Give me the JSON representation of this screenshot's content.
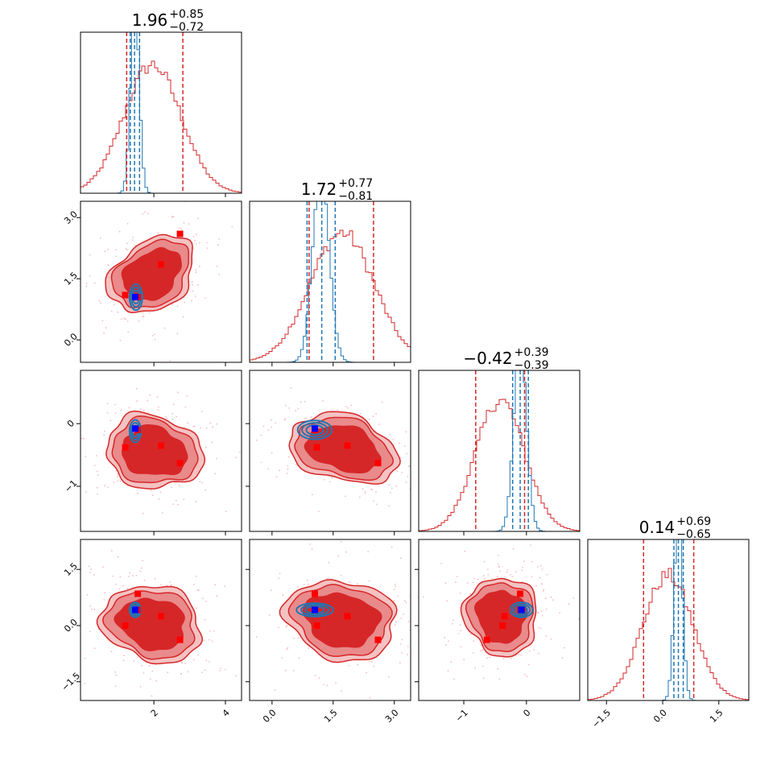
{
  "colors": {
    "sample": "#d62728",
    "sample_fill_outer": "#f4c2c2",
    "sample_fill_mid": "#e98a8b",
    "sample_fill_inner": "#d62728",
    "truth": "#1f77b4",
    "marker_red": "#ff0000",
    "marker_blue": "#0000ff"
  },
  "chart_data": {
    "type": "corner",
    "n_params": 4,
    "grid": false,
    "legend": "none",
    "titles": [
      {
        "median": "1.96",
        "plus": "+0.85",
        "minus": "−0.72"
      },
      {
        "median": "1.72",
        "plus": "+0.77",
        "minus": "−0.81"
      },
      {
        "median": "−0.42",
        "plus": "+0.39",
        "minus": "−0.39"
      },
      {
        "median": "0.14",
        "plus": "+0.69",
        "minus": "−0.65"
      }
    ],
    "ranges": [
      [
        -0.05,
        4.45
      ],
      [
        -0.55,
        3.4
      ],
      [
        -1.72,
        0.85
      ],
      [
        -2.0,
        2.3
      ]
    ],
    "ticks": [
      {
        "values": [
          2,
          4
        ],
        "labels": [
          "2",
          "4"
        ]
      },
      {
        "values": [
          0.0,
          1.5,
          3.0
        ],
        "labels": [
          "0.0",
          "1.5",
          "3.0"
        ]
      },
      {
        "values": [
          -1,
          0
        ],
        "labels": [
          "−1",
          "0"
        ]
      },
      {
        "values": [
          -1.5,
          0.0,
          1.5
        ],
        "labels": [
          "−1.5",
          "0.0",
          "1.5"
        ]
      }
    ],
    "diagonal": [
      {
        "red_quantiles": [
          1.24,
          2.81
        ],
        "blue_quantiles": [
          1.34,
          1.46,
          1.6
        ],
        "red_hist": {
          "mean": 1.96,
          "sd": 0.8
        },
        "blue_hist": {
          "mean": 1.47,
          "sd": 0.12
        }
      },
      {
        "red_quantiles": [
          0.91,
          2.49
        ],
        "blue_quantiles": [
          0.86,
          1.22,
          1.55
        ],
        "red_hist": {
          "mean": 1.72,
          "sd": 0.79
        },
        "blue_hist": {
          "mean": 1.2,
          "sd": 0.2
        }
      },
      {
        "red_quantiles": [
          -0.81,
          -0.03
        ],
        "blue_quantiles": [
          -0.22,
          -0.1,
          0.03
        ],
        "red_hist": {
          "mean": -0.42,
          "sd": 0.39
        },
        "blue_hist": {
          "mean": -0.1,
          "sd": 0.1
        }
      },
      {
        "red_quantiles": [
          -0.51,
          0.83
        ],
        "blue_quantiles": [
          0.3,
          0.42,
          0.55
        ],
        "red_hist": {
          "mean": 0.14,
          "sd": 0.67
        },
        "blue_hist": {
          "mean": 0.42,
          "sd": 0.11
        }
      }
    ],
    "markers_red": [
      [
        1.2,
        1.1,
        -0.38,
        0.0
      ],
      [
        2.2,
        1.85,
        -0.35,
        0.25
      ],
      [
        2.73,
        2.6,
        -0.63,
        -0.38
      ],
      [
        1.55,
        1.05,
        -0.1,
        0.85
      ],
      [
        1.55,
        1.05,
        -0.1,
        0.42
      ]
    ],
    "marker_blue": [
      1.48,
      1.05,
      -0.08,
      0.42
    ],
    "pairs": [
      {
        "row": 1,
        "col": 0,
        "red_center": [
          1.95,
          1.6
        ],
        "red_axes": [
          1.25,
          0.78
        ],
        "red_angle": 35,
        "blue_center": [
          1.5,
          1.05
        ],
        "blue_axes": [
          0.18,
          0.32
        ],
        "blue_angle": 0
      },
      {
        "row": 2,
        "col": 0,
        "red_center": [
          2.0,
          -0.45
        ],
        "red_axes": [
          1.3,
          0.55
        ],
        "red_angle": -12,
        "blue_center": [
          1.48,
          -0.12
        ],
        "blue_axes": [
          0.16,
          0.18
        ],
        "blue_angle": 0
      },
      {
        "row": 2,
        "col": 1,
        "red_center": [
          1.75,
          -0.4
        ],
        "red_axes": [
          1.3,
          0.5
        ],
        "red_angle": -15,
        "blue_center": [
          1.05,
          -0.1
        ],
        "blue_axes": [
          0.42,
          0.15
        ],
        "blue_angle": 0
      },
      {
        "row": 3,
        "col": 0,
        "red_center": [
          1.95,
          0.05
        ],
        "red_axes": [
          1.35,
          0.95
        ],
        "red_angle": -15,
        "blue_center": [
          1.48,
          0.42
        ],
        "blue_axes": [
          0.16,
          0.2
        ],
        "blue_angle": 0
      },
      {
        "row": 3,
        "col": 1,
        "red_center": [
          1.7,
          0.15
        ],
        "red_axes": [
          1.3,
          1.0
        ],
        "red_angle": -12,
        "blue_center": [
          1.05,
          0.42
        ],
        "blue_axes": [
          0.45,
          0.18
        ],
        "blue_angle": 0
      },
      {
        "row": 3,
        "col": 2,
        "red_center": [
          -0.4,
          0.25
        ],
        "red_axes": [
          0.55,
          1.0
        ],
        "red_angle": 20,
        "blue_center": [
          -0.08,
          0.42
        ],
        "blue_axes": [
          0.18,
          0.2
        ],
        "blue_angle": 0
      }
    ]
  }
}
